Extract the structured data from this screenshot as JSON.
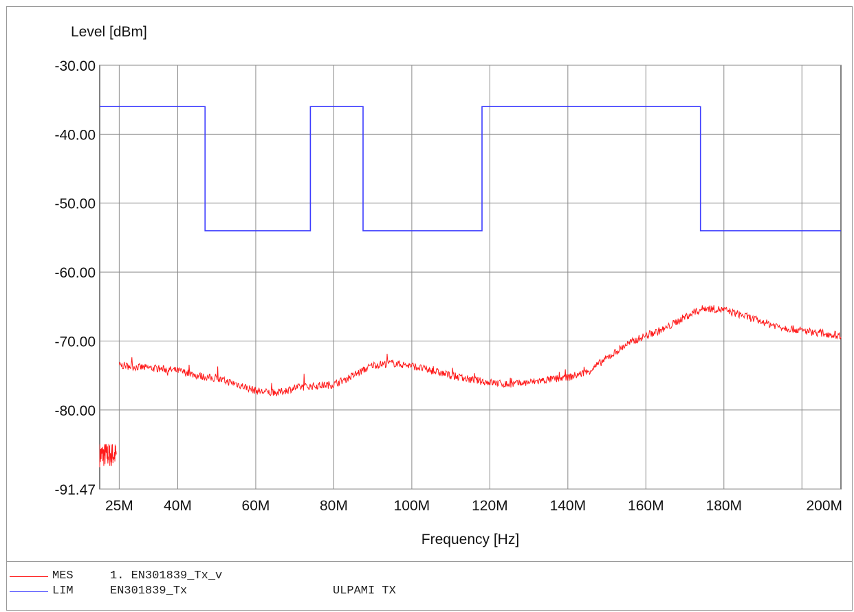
{
  "chart_data": {
    "type": "line",
    "title": "",
    "ylabel": "Level [dBm]",
    "xlabel": "Frequency [Hz]",
    "xlim": [
      20000000,
      210000000
    ],
    "ylim": [
      -91.47,
      -30.0
    ],
    "y_ticks": [
      -30.0,
      -40.0,
      -50.0,
      -60.0,
      -70.0,
      -80.0,
      -91.47
    ],
    "y_tick_labels": [
      "-30.00",
      "-40.00",
      "-50.00",
      "-60.00",
      "-70.00",
      "-80.00",
      "-91.47"
    ],
    "x_ticks": [
      25000000,
      40000000,
      60000000,
      80000000,
      100000000,
      120000000,
      140000000,
      160000000,
      180000000,
      200000000
    ],
    "x_tick_labels": [
      "25M",
      "40M",
      "60M",
      "80M",
      "100M",
      "120M",
      "140M",
      "160M",
      "180M",
      "200M"
    ],
    "grid": true,
    "legend_placement": "bottom",
    "series": [
      {
        "name": "EN301839_Tx",
        "code": "LIM",
        "color": "#3b3bff",
        "style": "step",
        "x": [
          20000000,
          47000000,
          47000000,
          74000000,
          74000000,
          87500000,
          87500000,
          118000000,
          118000000,
          174000000,
          174000000,
          210000000
        ],
        "y": [
          -36.0,
          -36.0,
          -54.0,
          -54.0,
          -36.0,
          -36.0,
          -54.0,
          -54.0,
          -36.0,
          -36.0,
          -54.0,
          -54.0
        ]
      },
      {
        "name": "1. EN301839_Tx_v",
        "code": "MES",
        "color": "#ff1a1a",
        "style": "noisy",
        "x": [
          25000000,
          30000000,
          35000000,
          40000000,
          45000000,
          50000000,
          55000000,
          60000000,
          65000000,
          70000000,
          75000000,
          80000000,
          85000000,
          90000000,
          95000000,
          100000000,
          105000000,
          110000000,
          115000000,
          120000000,
          125000000,
          130000000,
          135000000,
          140000000,
          145000000,
          150000000,
          155000000,
          160000000,
          165000000,
          170000000,
          175000000,
          180000000,
          185000000,
          190000000,
          195000000,
          200000000,
          210000000
        ],
        "y": [
          -73.5,
          -73.8,
          -74.0,
          -74.3,
          -75.0,
          -75.5,
          -76.2,
          -77.2,
          -77.6,
          -76.8,
          -76.5,
          -76.3,
          -75.0,
          -73.5,
          -73.2,
          -73.6,
          -74.3,
          -75.0,
          -75.6,
          -76.0,
          -76.3,
          -76.0,
          -75.6,
          -75.3,
          -74.5,
          -72.5,
          -70.5,
          -69.2,
          -68.2,
          -66.5,
          -65.2,
          -65.5,
          -66.3,
          -67.3,
          -68.0,
          -68.5,
          -69.2
        ],
        "cluster": {
          "x_range": [
            20000000,
            24300000
          ],
          "y_range": [
            -88.3,
            -84.7
          ]
        }
      }
    ]
  },
  "legend": [
    {
      "code": "MES",
      "name": "1. EN301839_Tx_v",
      "note": "",
      "color": "#ff1a1a"
    },
    {
      "code": "LIM",
      "name": "EN301839_Tx",
      "note": "ULPAMI TX",
      "color": "#3b3bff"
    }
  ]
}
